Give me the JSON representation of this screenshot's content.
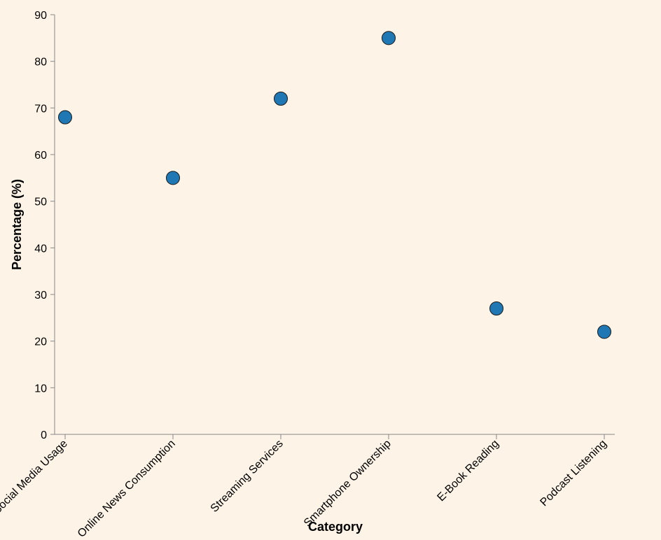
{
  "chart_data": {
    "type": "scatter",
    "title": "",
    "xlabel": "Category",
    "ylabel": "Percentage (%)",
    "categories": [
      "Social Media Usage",
      "Online News Consumption",
      "Streaming Services",
      "Smartphone Ownership",
      "E-Book Reading",
      "Podcast Listening"
    ],
    "values": [
      68,
      55,
      72,
      85,
      27,
      22
    ],
    "ylim": [
      0,
      90
    ],
    "yticks": [
      0,
      10,
      20,
      30,
      40,
      50,
      60,
      70,
      80,
      90
    ],
    "grid": false,
    "legend": "none",
    "point_color": "#1f77b4",
    "background": "#fdf3e6"
  }
}
